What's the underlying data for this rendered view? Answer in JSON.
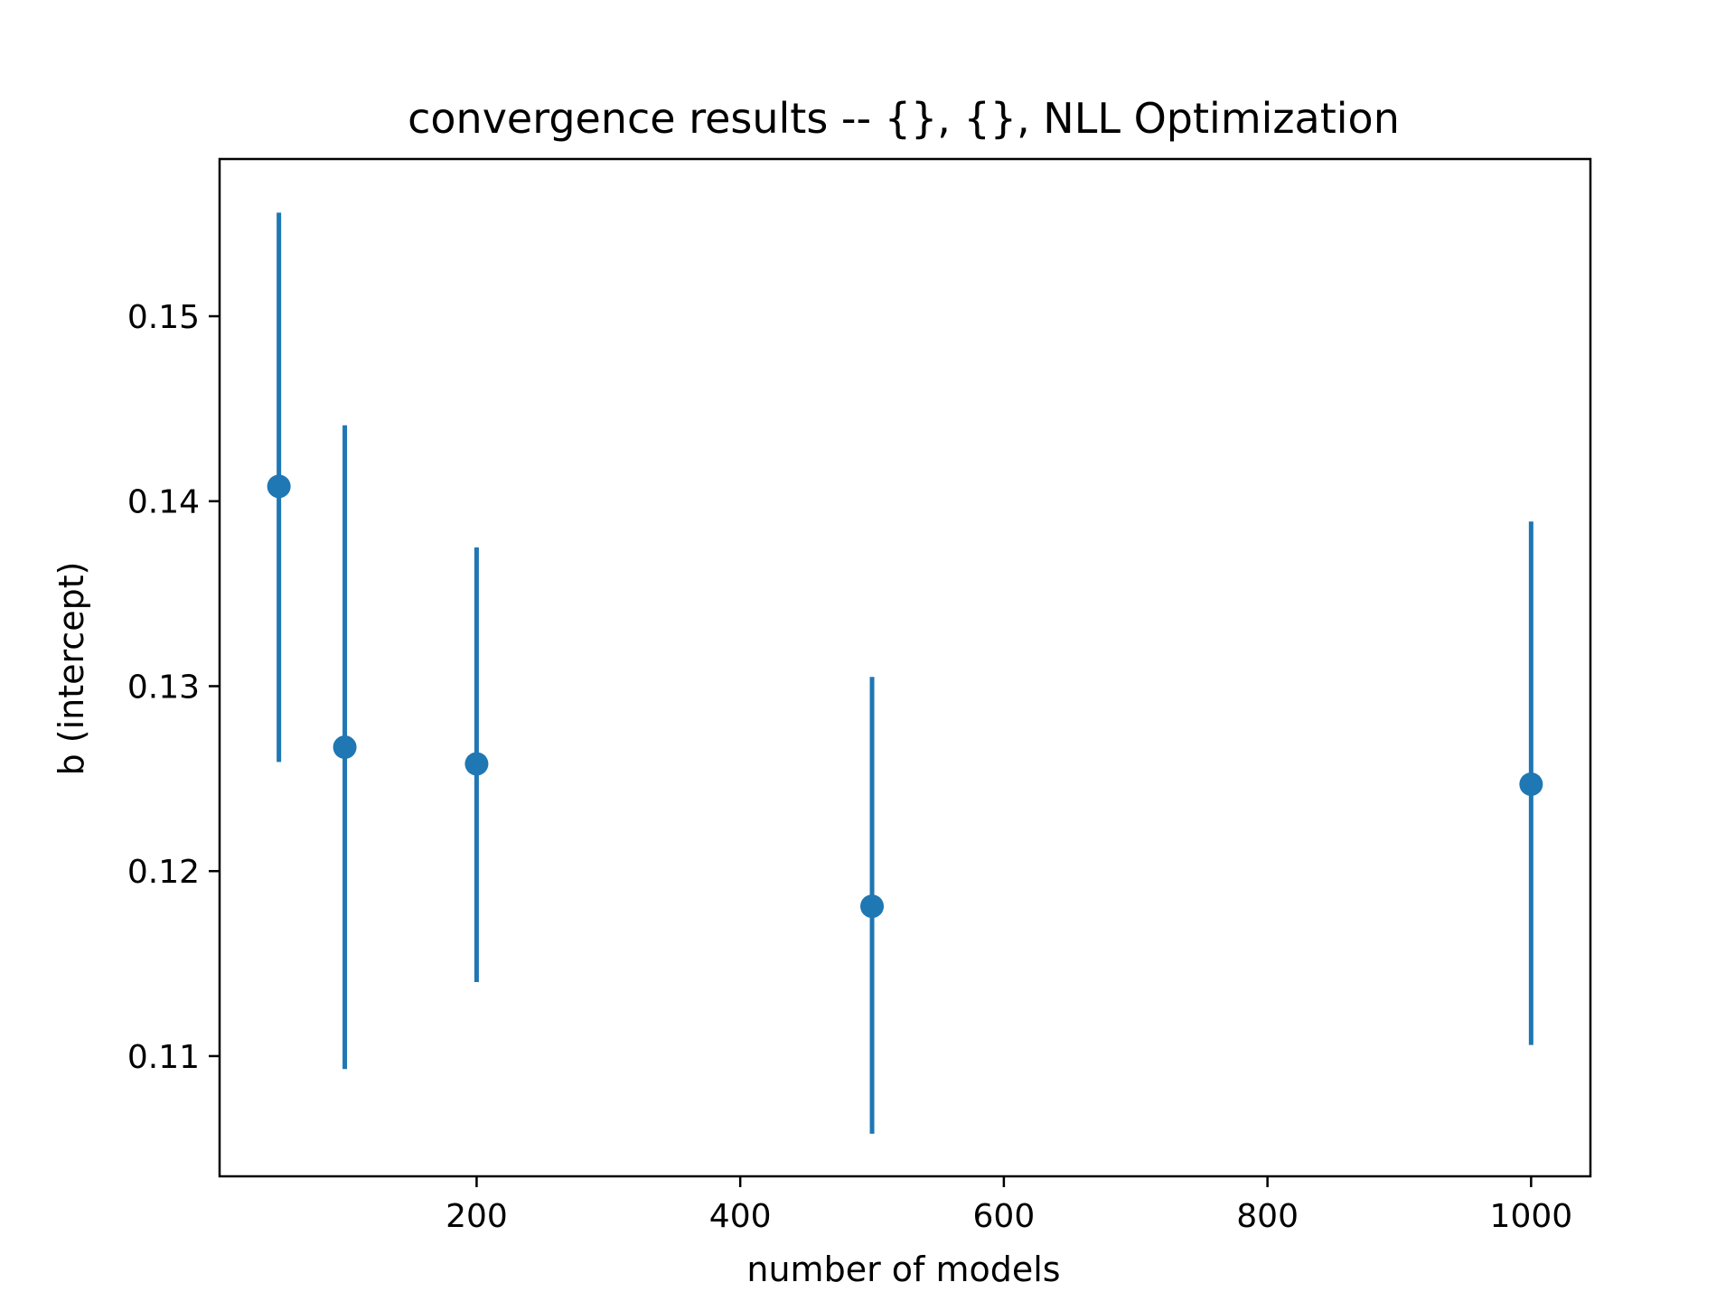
{
  "chart_data": {
    "type": "scatter",
    "title": "convergence results -- {}, {}, NLL Optimization",
    "xlabel": "number of models",
    "ylabel": "b (intercept)",
    "xlim": [
      5,
      1045
    ],
    "ylim": [
      0.1035,
      0.1585
    ],
    "x_ticks": [
      200,
      400,
      600,
      800,
      1000
    ],
    "x_tick_labels": [
      "200",
      "400",
      "600",
      "800",
      "1000"
    ],
    "y_ticks": [
      0.11,
      0.12,
      0.13,
      0.14,
      0.15
    ],
    "y_tick_labels": [
      "0.11",
      "0.12",
      "0.13",
      "0.14",
      "0.15"
    ],
    "grid": false,
    "legend": "none",
    "marker_color": "#1f77b4",
    "points": [
      {
        "x": 50,
        "y": 0.1408,
        "y_low": 0.1259,
        "y_high": 0.1556
      },
      {
        "x": 100,
        "y": 0.1267,
        "y_low": 0.1093,
        "y_high": 0.1441
      },
      {
        "x": 200,
        "y": 0.1258,
        "y_low": 0.114,
        "y_high": 0.1375
      },
      {
        "x": 500,
        "y": 0.1181,
        "y_low": 0.1058,
        "y_high": 0.1305
      },
      {
        "x": 1000,
        "y": 0.1247,
        "y_low": 0.1106,
        "y_high": 0.1389
      }
    ]
  }
}
